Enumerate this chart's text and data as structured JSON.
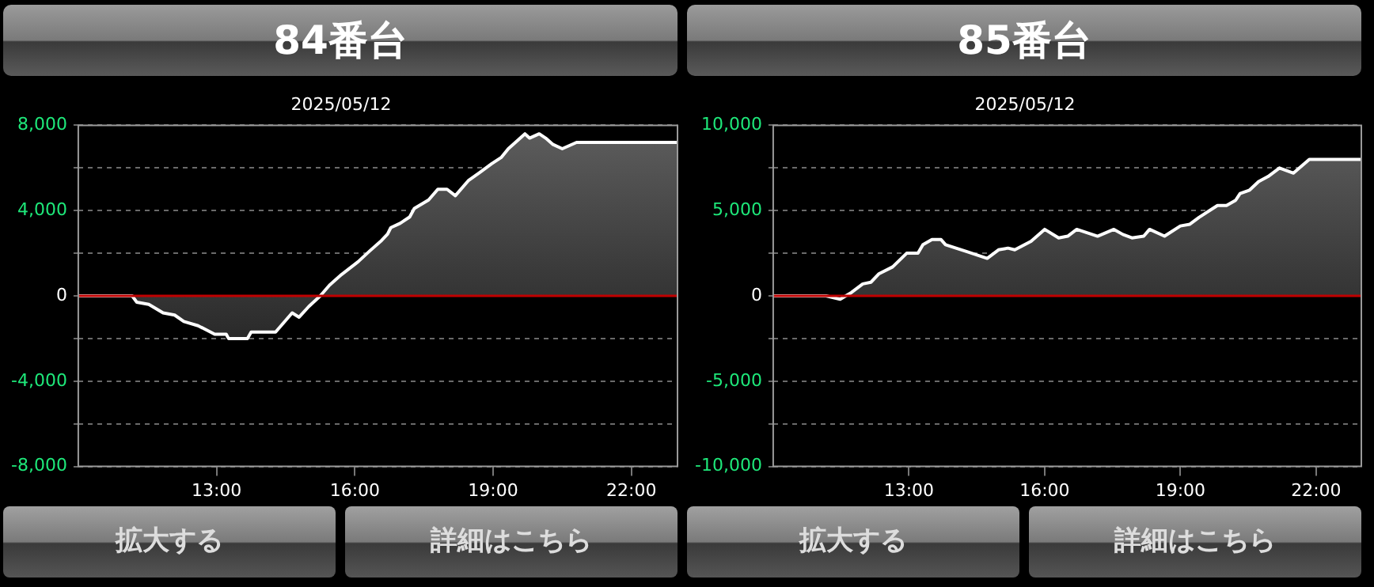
{
  "chart_data": [
    {
      "type": "area",
      "title": "84番台",
      "subtitle": "2025/05/12",
      "x": [
        10,
        11.17,
        11.27,
        11.53,
        11.84,
        12.09,
        12.29,
        12.6,
        12.96,
        13.21,
        13.26,
        13.67,
        13.75,
        14.28,
        14.64,
        14.79,
        15.0,
        15.25,
        15.45,
        15.71,
        16.07,
        16.32,
        16.58,
        16.71,
        16.78,
        16.98,
        17.19,
        17.29,
        17.6,
        17.8,
        18.0,
        18.18,
        18.46,
        18.72,
        18.97,
        19.18,
        19.33,
        19.69,
        19.79,
        20.0,
        20.14,
        20.3,
        20.5,
        20.81,
        23.0
      ],
      "series": [
        {
          "color": "#ffffff",
          "values": [
            0,
            0,
            -300,
            -400,
            -800,
            -900,
            -1200,
            -1400,
            -1800,
            -1800,
            -2000,
            -2000,
            -1700,
            -1700,
            -800,
            -1000,
            -500,
            0,
            500,
            1000,
            1600,
            2100,
            2600,
            2900,
            3200,
            3400,
            3700,
            4100,
            4500,
            5000,
            5000,
            4700,
            5400,
            5800,
            6200,
            6500,
            6900,
            7600,
            7400,
            7600,
            7400,
            7100,
            6900,
            7200,
            7200
          ]
        }
      ],
      "xlim": [
        10,
        23
      ],
      "xticks": [
        {
          "value": 13,
          "label": "13:00"
        },
        {
          "value": 16,
          "label": "16:00"
        },
        {
          "value": 19,
          "label": "19:00"
        },
        {
          "value": 22,
          "label": "22:00"
        }
      ],
      "ylim": [
        -8000,
        8000
      ],
      "yticks": [
        {
          "value": -8000,
          "label": "-8,000"
        },
        {
          "value": -6000,
          "label": null
        },
        {
          "value": -4000,
          "label": "-4,000"
        },
        {
          "value": -2000,
          "label": null
        },
        0,
        {
          "value": 2000,
          "label": null
        },
        {
          "value": 4000,
          "label": "4,000"
        },
        {
          "value": 6000,
          "label": null
        },
        {
          "value": 8000,
          "label": "8,000"
        }
      ],
      "grid": "y",
      "legend": false,
      "marker": "none",
      "line_style": "solid",
      "ref_lines": [
        {
          "axis": "y",
          "value": 0,
          "color": "#c00000"
        }
      ],
      "annotations": [
        "拡大する",
        "詳細はこちら"
      ]
    },
    {
      "type": "area",
      "title": "85番台",
      "subtitle": "2025/05/12",
      "x": [
        10,
        11.17,
        11.48,
        11.73,
        11.98,
        12.16,
        12.34,
        12.64,
        12.95,
        13.2,
        13.31,
        13.51,
        13.71,
        13.81,
        14.27,
        14.73,
        14.98,
        15.19,
        15.34,
        15.7,
        16.0,
        16.31,
        16.51,
        16.71,
        17.17,
        17.53,
        17.73,
        17.93,
        18.19,
        18.32,
        18.65,
        19.0,
        19.21,
        19.41,
        19.82,
        20.02,
        20.22,
        20.32,
        20.53,
        20.73,
        20.94,
        21.19,
        21.5,
        21.85,
        22.0,
        23.0
      ],
      "series": [
        {
          "color": "#ffffff",
          "values": [
            0,
            0,
            -200,
            200,
            700,
            800,
            1300,
            1700,
            2500,
            2500,
            3000,
            3300,
            3300,
            3000,
            2600,
            2200,
            2700,
            2800,
            2700,
            3200,
            3900,
            3400,
            3500,
            3900,
            3500,
            3900,
            3600,
            3400,
            3500,
            3900,
            3500,
            4100,
            4200,
            4600,
            5300,
            5300,
            5600,
            6000,
            6200,
            6700,
            7000,
            7500,
            7200,
            8000,
            8000,
            8000
          ]
        }
      ],
      "xlim": [
        10,
        23
      ],
      "xticks": [
        {
          "value": 13,
          "label": "13:00"
        },
        {
          "value": 16,
          "label": "16:00"
        },
        {
          "value": 19,
          "label": "19:00"
        },
        {
          "value": 22,
          "label": "22:00"
        }
      ],
      "ylim": [
        -10000,
        10000
      ],
      "yticks": [
        {
          "value": -10000,
          "label": "-10,000"
        },
        {
          "value": -7500,
          "label": null
        },
        {
          "value": -5000,
          "label": "-5,000"
        },
        {
          "value": -2500,
          "label": null
        },
        0,
        {
          "value": 2500,
          "label": null
        },
        {
          "value": 5000,
          "label": "5,000"
        },
        {
          "value": 7500,
          "label": null
        },
        {
          "value": 10000,
          "label": "10,000"
        }
      ],
      "grid": "y",
      "legend": false,
      "marker": "none",
      "line_style": "solid",
      "ref_lines": [
        {
          "axis": "y",
          "value": 0,
          "color": "#c00000"
        }
      ],
      "annotations": [
        "拡大する",
        "詳細はこちら"
      ]
    }
  ]
}
